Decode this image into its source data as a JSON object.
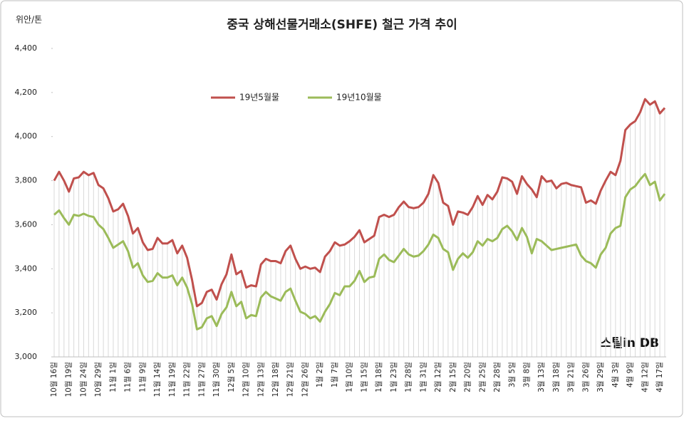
{
  "chart_data": {
    "type": "line",
    "title": "중국 상해선물거래소(SHFE) 철근 가격 추이",
    "y_label": "위안/톤",
    "logo": "스틸in DB",
    "legend": "top",
    "ylim": [
      3000,
      4400
    ],
    "yticks": [
      {
        "value": 3000,
        "label": "3,000"
      },
      {
        "value": 3200,
        "label": "3,200"
      },
      {
        "value": 3400,
        "label": "3,400"
      },
      {
        "value": 3600,
        "label": "3,600"
      },
      {
        "value": 3800,
        "label": "3,800"
      },
      {
        "value": 4000,
        "label": "4,000"
      },
      {
        "value": 4200,
        "label": "4,200"
      },
      {
        "value": 4400,
        "label": "4,400"
      }
    ],
    "categories": [
      "10월 16일",
      null,
      null,
      "10월 19일",
      null,
      null,
      "10월 24일",
      null,
      null,
      "10월 29일",
      null,
      null,
      "11월 1일",
      null,
      null,
      "11월 6일",
      null,
      null,
      "11월 9일",
      null,
      null,
      "11월 14일",
      null,
      null,
      "11월 19일",
      null,
      null,
      "11월 22일",
      null,
      null,
      "11월 27일",
      null,
      null,
      "11월 30일",
      null,
      null,
      "12월 5일",
      null,
      null,
      "12월 10일",
      null,
      null,
      "12월 13일",
      null,
      null,
      "12월 18일",
      null,
      null,
      "12월 21일",
      null,
      null,
      "12월 26일",
      null,
      null,
      "1월 2일",
      null,
      null,
      "1월 7일",
      null,
      null,
      "1월 10일",
      null,
      null,
      "1월 15일",
      null,
      null,
      "1월 18일",
      null,
      null,
      "1월 23일",
      null,
      null,
      "1월 28일",
      null,
      null,
      "1월 31일",
      null,
      null,
      "2월 12일",
      null,
      null,
      "2월 15일",
      null,
      null,
      "2월 20일",
      null,
      null,
      "2월 25일",
      null,
      null,
      "2월 28일",
      null,
      null,
      "3월 5일",
      null,
      null,
      "3월 8일",
      null,
      null,
      "3월 13일",
      null,
      null,
      "3월 18일",
      null,
      null,
      "3월 21일",
      null,
      null,
      "3월 26일",
      null,
      null,
      "3월 29일",
      null,
      null,
      "4월 3일",
      null,
      null,
      "4월 9일",
      null,
      null,
      "4월 12일",
      null,
      null,
      "4월 17일",
      null
    ],
    "series": [
      {
        "name": "19년5월물",
        "color": "#c0504d",
        "values": [
          3800,
          3840,
          3800,
          3750,
          3810,
          3815,
          3840,
          3825,
          3835,
          3780,
          3765,
          3720,
          3660,
          3670,
          3695,
          3640,
          3560,
          3585,
          3520,
          3485,
          3490,
          3540,
          3515,
          3515,
          3530,
          3470,
          3505,
          3450,
          3350,
          3230,
          3245,
          3295,
          3305,
          3260,
          3330,
          3375,
          3465,
          3375,
          3390,
          3315,
          3325,
          3320,
          3420,
          3445,
          3435,
          3435,
          3425,
          3480,
          3505,
          3445,
          3400,
          3410,
          3400,
          3405,
          3385,
          3455,
          3480,
          3520,
          3505,
          3510,
          3525,
          3545,
          3575,
          3520,
          3535,
          3550,
          3635,
          3645,
          3635,
          3645,
          3680,
          3705,
          3680,
          3675,
          3680,
          3700,
          3740,
          3825,
          3790,
          3700,
          3685,
          3600,
          3660,
          3655,
          3645,
          3680,
          3730,
          3690,
          3735,
          3715,
          3750,
          3815,
          3810,
          3795,
          3740,
          3820,
          3785,
          3760,
          3725,
          3820,
          3795,
          3800,
          3765,
          3785,
          3790,
          3780,
          3775,
          3770,
          3700,
          3710,
          3695,
          3755,
          3800,
          3840,
          3825,
          3890,
          4030,
          4055,
          4070,
          4110,
          4170,
          4145,
          4160,
          4105,
          4130
        ]
      },
      {
        "name": "19년10월물",
        "color": "#9bbb59",
        "values": [
          3645,
          3665,
          3630,
          3600,
          3645,
          3640,
          3650,
          3640,
          3635,
          3600,
          3580,
          3540,
          3495,
          3510,
          3525,
          3480,
          3405,
          3425,
          3370,
          3340,
          3345,
          3380,
          3360,
          3360,
          3370,
          3325,
          3360,
          3315,
          3240,
          3125,
          3135,
          3175,
          3185,
          3140,
          3195,
          3225,
          3295,
          3230,
          3250,
          3175,
          3190,
          3185,
          3270,
          3295,
          3275,
          3265,
          3255,
          3295,
          3310,
          3255,
          3205,
          3195,
          3175,
          3185,
          3160,
          3205,
          3240,
          3290,
          3280,
          3320,
          3320,
          3345,
          3390,
          3340,
          3360,
          3365,
          3445,
          3465,
          3440,
          3430,
          3460,
          3490,
          3465,
          3455,
          3460,
          3480,
          3510,
          3555,
          3540,
          3490,
          3475,
          3395,
          3445,
          3470,
          3450,
          3475,
          3525,
          3505,
          3535,
          3525,
          3540,
          3580,
          3595,
          3570,
          3530,
          3585,
          3545,
          3470,
          3535,
          3525,
          3505,
          3485,
          3490,
          3495,
          3500,
          3505,
          3510,
          3460,
          3435,
          3425,
          3405,
          3465,
          3495,
          3560,
          3585,
          3595,
          3725,
          3760,
          3775,
          3805,
          3830,
          3780,
          3795,
          3710,
          3740
        ]
      }
    ]
  }
}
